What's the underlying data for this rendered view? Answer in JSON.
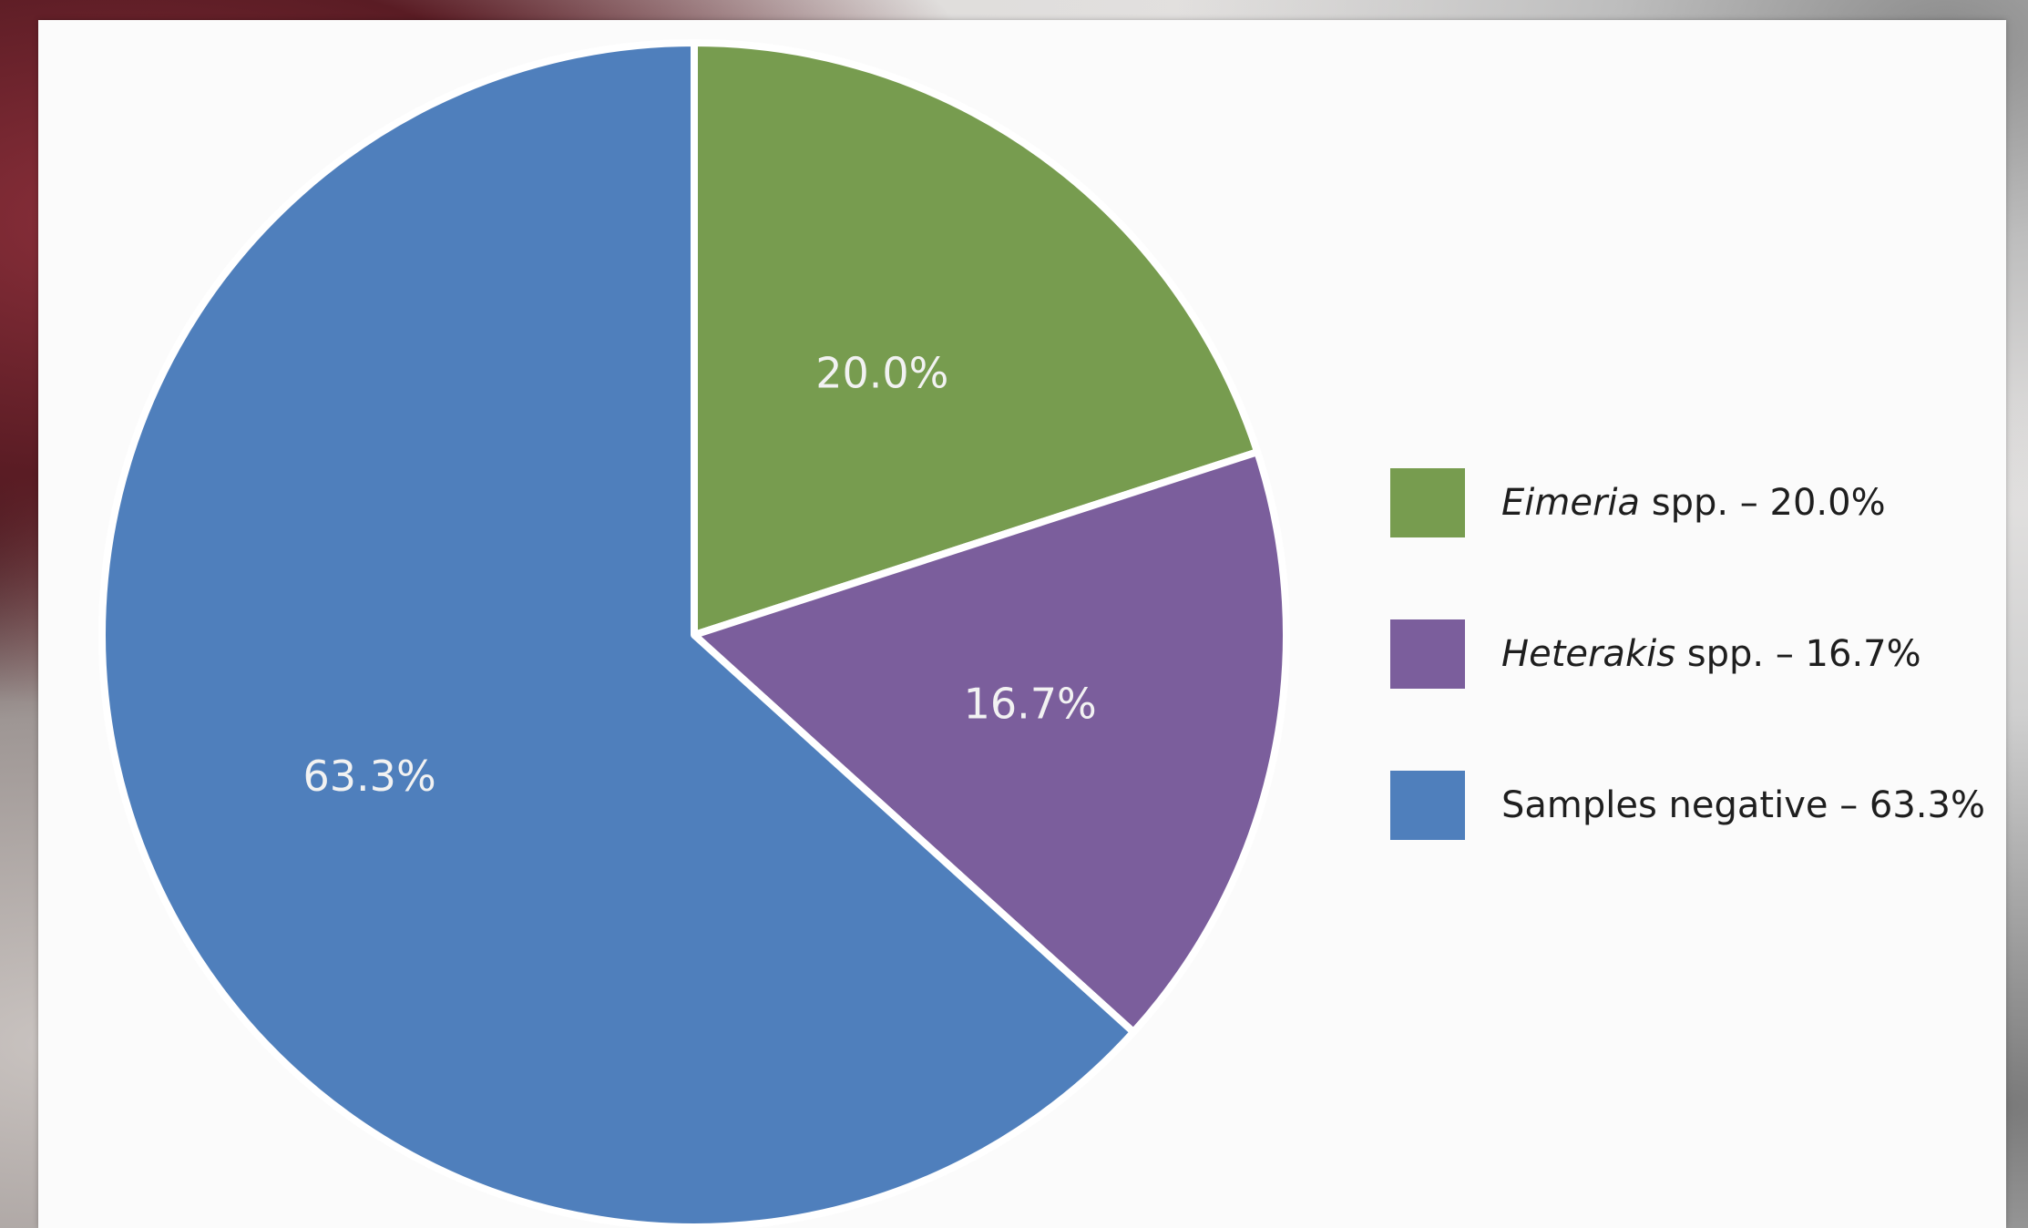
{
  "chart_data": {
    "type": "pie",
    "title": "",
    "start_angle_deg": 0,
    "direction": "clockwise",
    "slices": [
      {
        "label": "Eimeria spp.",
        "genus": "Eimeria",
        "suffix": "spp.",
        "value": 20.0,
        "value_label": "20.0%",
        "legend_text": " spp. – 20.0%",
        "color": "#779c4f"
      },
      {
        "label": "Heterakis spp.",
        "genus": "Heterakis",
        "suffix": "spp.",
        "value": 16.7,
        "value_label": "16.7%",
        "legend_text": " spp. – 16.7%",
        "color": "#7b5e9c"
      },
      {
        "label": "Samples negative",
        "genus": "",
        "suffix": "",
        "value": 63.3,
        "value_label": "63.3%",
        "legend_text": "Samples negative – 63.3%",
        "color": "#4f7fbc"
      }
    ],
    "legend_position": "right"
  },
  "legend": {
    "items": [
      {
        "genus": "Eimeria",
        "rest": " spp. – 20.0%",
        "color": "#779c4f"
      },
      {
        "genus": "Heterakis",
        "rest": " spp. – 16.7%",
        "color": "#7b5e9c"
      },
      {
        "genus": "",
        "rest": "Samples negative – 63.3%",
        "color": "#4f7fbc"
      }
    ]
  }
}
